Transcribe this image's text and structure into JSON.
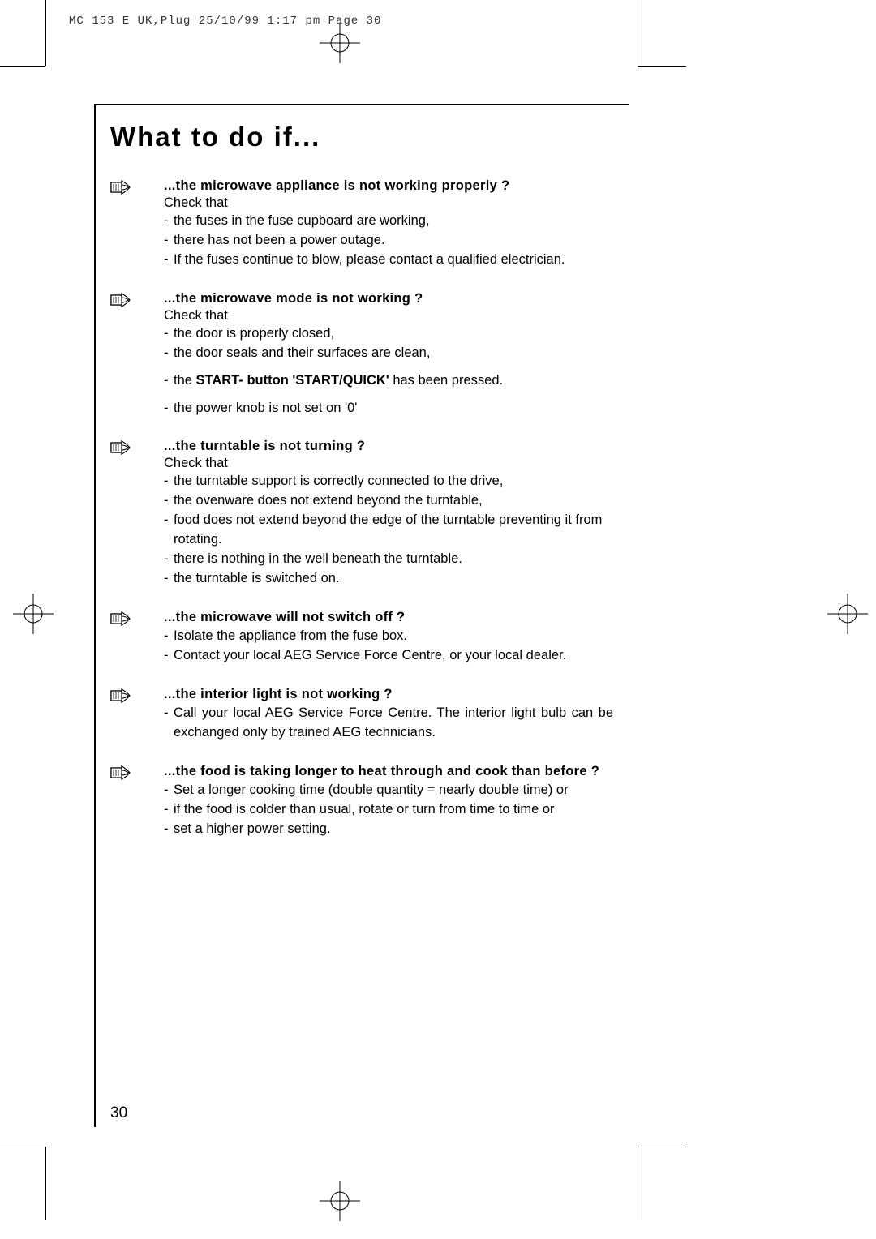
{
  "header": "MC 153 E UK,Plug  25/10/99 1:17 pm  Page 30",
  "title": "What to do if...",
  "page_number": "30",
  "colors": {
    "text": "#000000",
    "background": "#ffffff"
  },
  "typography": {
    "title_fontsize": 33,
    "body_fontsize": 16.5,
    "header_fontsize": 14
  },
  "sections": [
    {
      "heading": "...the microwave appliance is not working properly ?",
      "check_that": "Check that",
      "bullets": [
        {
          "text": "the fuses in the fuse cupboard are working,"
        },
        {
          "text": "there has not been a power outage."
        },
        {
          "text": "If the fuses continue to blow, please contact a qualified electrician."
        }
      ]
    },
    {
      "heading": "...the microwave mode is not working ?",
      "check_that": "Check that",
      "bullets": [
        {
          "text": "the door is properly closed,"
        },
        {
          "text": "the door seals and their surfaces are clean,"
        },
        {
          "text_prefix": "the ",
          "bold": "START- button 'START/QUICK'",
          "text_suffix": "  has been pressed.",
          "spacer_before": true
        },
        {
          "text": "the power knob is not set on '0'",
          "spacer_before": true
        }
      ]
    },
    {
      "heading": "...the turntable is not turning ?",
      "check_that": "Check that",
      "bullets": [
        {
          "text": "the turntable support is correctly connected to the drive,"
        },
        {
          "text": "the ovenware does not extend beyond the turntable,"
        },
        {
          "text": "food does not extend beyond the edge of the turntable preventing it from rotating."
        },
        {
          "text": "there is nothing in the well beneath the turntable."
        },
        {
          "text": "the turntable is switched on."
        }
      ]
    },
    {
      "heading": "...the microwave will not switch off ?",
      "bullets": [
        {
          "text": "Isolate the appliance from the fuse box."
        },
        {
          "text": "Contact your local AEG Service Force Centre, or your local dealer."
        }
      ]
    },
    {
      "heading": "...the interior light is not working ?",
      "bullets": [
        {
          "text": "Call your local AEG Service Force Centre. The interior light bulb can be exchanged only by trained AEG technicians.",
          "justify": true
        }
      ]
    },
    {
      "heading": "...the food is taking longer to heat through and cook than before ?",
      "bullets": [
        {
          "text": "Set a longer cooking time (double quantity = nearly double time) or"
        },
        {
          "text": "if the food is colder than usual, rotate or turn from time to time or"
        },
        {
          "text": "set a higher power setting."
        }
      ]
    }
  ]
}
